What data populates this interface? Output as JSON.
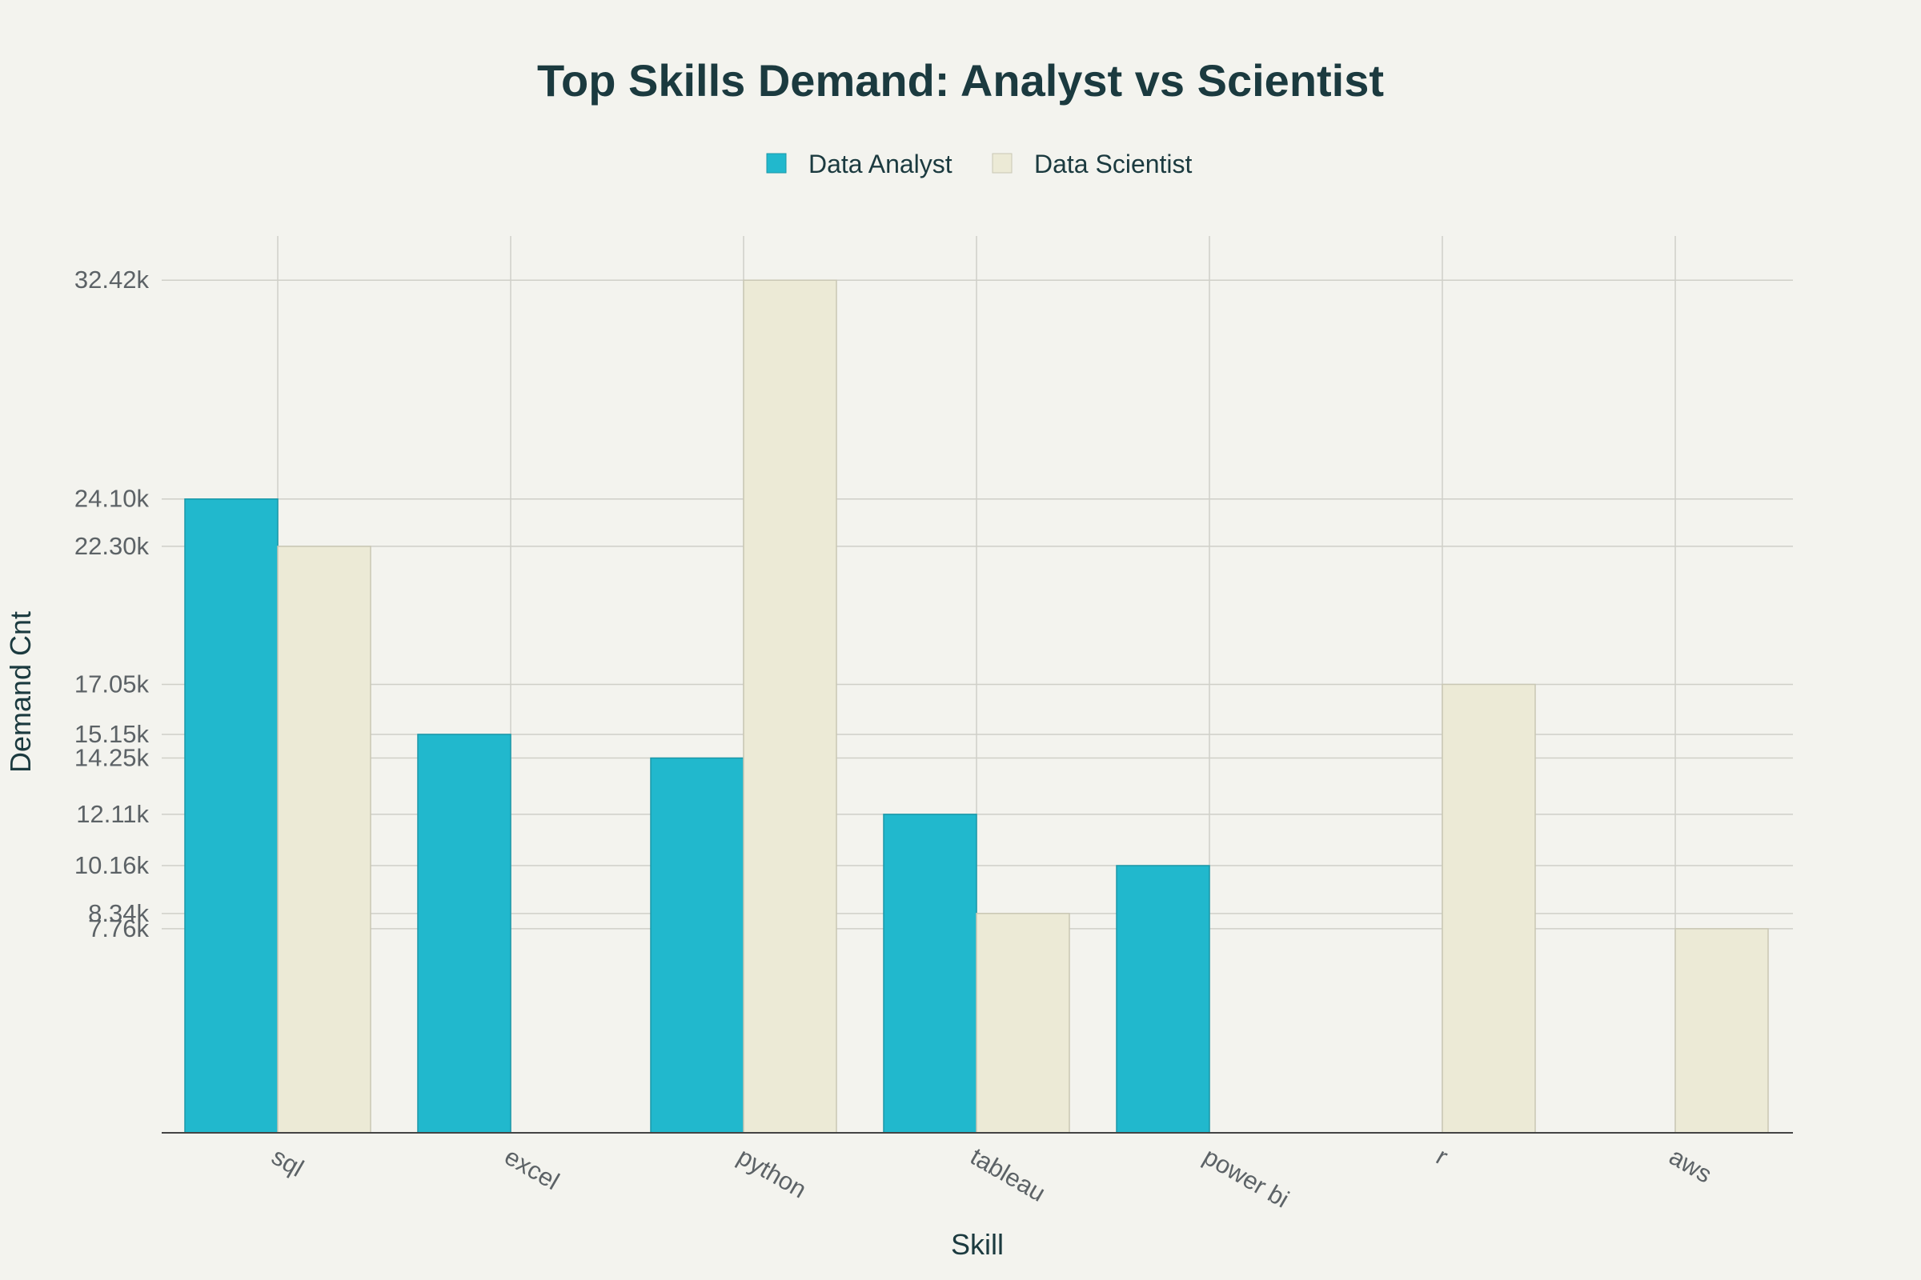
{
  "chart_data": {
    "type": "bar",
    "title": "Top Skills Demand: Analyst vs Scientist",
    "xlabel": "Skill",
    "ylabel": "Demand Cnt",
    "categories": [
      "sql",
      "excel",
      "python",
      "tableau",
      "power bi",
      "r",
      "aws"
    ],
    "series": [
      {
        "name": "Data Analyst",
        "color": "#21b8cd",
        "values": [
          24100,
          15150,
          14250,
          12110,
          10160,
          null,
          null
        ]
      },
      {
        "name": "Data Scientist",
        "color": "#ecead6",
        "values": [
          22300,
          null,
          32420,
          8340,
          null,
          17050,
          7760
        ]
      }
    ],
    "y_ticks": [
      7760,
      8340,
      10160,
      12110,
      14250,
      15150,
      17050,
      22300,
      24100,
      32420
    ],
    "y_tick_labels": [
      "7.76k",
      "8.34k",
      "10.16k",
      "12.11k",
      "14.25k",
      "15.15k",
      "17.05k",
      "22.30k",
      "24.10k",
      "32.42k"
    ],
    "ylim": [
      0,
      34100
    ],
    "grid": true,
    "legend_position": "top-center"
  }
}
